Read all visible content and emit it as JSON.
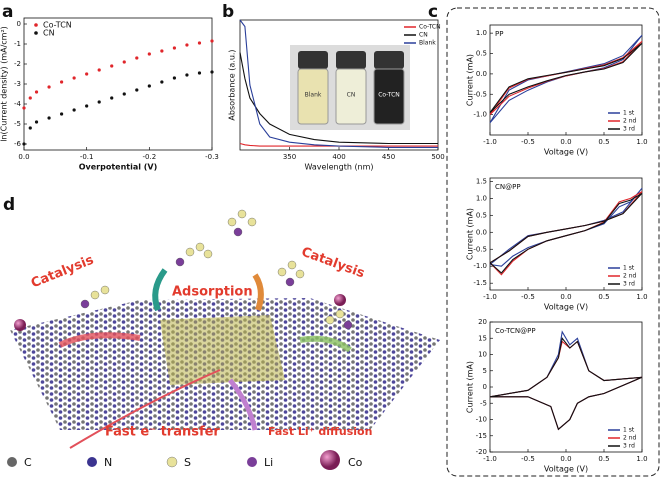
{
  "chart_data": [
    {
      "type": "scatter",
      "panel": "a",
      "x_label": "Overpotential (V)",
      "y_label": "ln(Current density) (mA/cm²)",
      "xlim": [
        0,
        -0.3
      ],
      "ylim": [
        -6.3,
        0.3
      ],
      "xticks": [
        {
          "value": 0,
          "label": "0.0"
        },
        -0.1,
        -0.2,
        -0.3
      ],
      "yticks": [
        0,
        -1,
        -2,
        -3,
        -4,
        -5,
        -6
      ],
      "legend": "upper left",
      "x": [
        0,
        -0.01,
        -0.02,
        -0.04,
        -0.06,
        -0.08,
        -0.1,
        -0.12,
        -0.14,
        -0.16,
        -0.18,
        -0.2,
        -0.22,
        -0.24,
        -0.26,
        -0.28,
        -0.3
      ],
      "series": [
        {
          "name": "Co-TCN",
          "color": "#e0262b",
          "values": [
            -4.2,
            -3.7,
            -3.4,
            -3.15,
            -2.9,
            -2.7,
            -2.5,
            -2.3,
            -2.1,
            -1.9,
            -1.7,
            -1.5,
            -1.35,
            -1.2,
            -1.05,
            -0.95,
            -0.85
          ]
        },
        {
          "name": "CN",
          "color": "#111111",
          "values": [
            -6,
            -5.2,
            -4.9,
            -4.7,
            -4.5,
            -4.3,
            -4.1,
            -3.9,
            -3.7,
            -3.5,
            -3.3,
            -3.1,
            -2.9,
            -2.7,
            -2.55,
            -2.45,
            -2.4
          ]
        }
      ]
    },
    {
      "type": "line",
      "panel": "b",
      "x_label": "Wavelength (nm)",
      "y_label": "Absorbance (a.u.)",
      "xlim": [
        300,
        500
      ],
      "ylim": [
        0,
        1
      ],
      "xticks": [
        350,
        400,
        450,
        500
      ],
      "legend": "upper right",
      "inset_labels": [
        "Blank",
        "CN",
        "Co-TCN"
      ],
      "x": [
        300,
        305,
        310,
        320,
        330,
        350,
        375,
        400,
        450,
        500
      ],
      "series": [
        {
          "name": "Co-TCN",
          "color": "#e0262b",
          "values": [
            0.05,
            0.04,
            0.035,
            0.03,
            0.03,
            0.03,
            0.03,
            0.03,
            0.03,
            0.03
          ]
        },
        {
          "name": "CN",
          "color": "#111111",
          "values": [
            0.75,
            0.55,
            0.4,
            0.28,
            0.2,
            0.12,
            0.08,
            0.06,
            0.05,
            0.05
          ]
        },
        {
          "name": "Blank",
          "color": "#2a3f9a",
          "values": [
            1.0,
            0.95,
            0.5,
            0.2,
            0.1,
            0.06,
            0.04,
            0.03,
            0.02,
            0.02
          ]
        }
      ]
    },
    {
      "type": "line",
      "panel": "c",
      "title": "PP",
      "x_label": "Voltage (V)",
      "y_label": "Current (mA)",
      "xlim": [
        -1,
        1
      ],
      "ylim": [
        -1.5,
        1.2
      ],
      "legend": "lower right",
      "xticks": [
        {
          "value": -1,
          "label": "-1.0"
        },
        -0.5,
        {
          "value": 0,
          "label": "0.0"
        },
        0.5,
        {
          "value": 1,
          "label": "1.0"
        }
      ],
      "yticks": [
        {
          "value": -1,
          "label": "-1.0"
        },
        -0.5,
        {
          "value": 0,
          "label": "0.0"
        },
        0.5,
        {
          "value": 1,
          "label": "1.0"
        }
      ],
      "x": [
        -1,
        -0.75,
        -0.5,
        -0.25,
        0,
        0.25,
        0.5,
        0.75,
        1,
        0.75,
        0.5,
        0.25,
        0,
        -0.25,
        -0.5,
        -0.75,
        -1
      ],
      "series": [
        {
          "name": "1 st",
          "color": "#2a3f9a",
          "values": [
            -1.2,
            -0.65,
            -0.4,
            -0.2,
            -0.05,
            0.05,
            0.15,
            0.35,
            0.95,
            0.45,
            0.25,
            0.15,
            0.05,
            -0.05,
            -0.15,
            -0.4,
            -1.2
          ]
        },
        {
          "name": "2 nd",
          "color": "#e0262b",
          "values": [
            -1.0,
            -0.55,
            -0.35,
            -0.18,
            -0.05,
            0.05,
            0.13,
            0.3,
            0.8,
            0.4,
            0.22,
            0.13,
            0.04,
            -0.05,
            -0.13,
            -0.35,
            -1.0
          ]
        },
        {
          "name": "3 rd",
          "color": "#111111",
          "values": [
            -0.95,
            -0.5,
            -0.32,
            -0.17,
            -0.04,
            0.05,
            0.12,
            0.28,
            0.75,
            0.38,
            0.2,
            0.12,
            0.04,
            -0.04,
            -0.12,
            -0.32,
            -0.95
          ]
        }
      ]
    },
    {
      "type": "line",
      "title": "CN@PP",
      "x_label": "Voltage (V)",
      "y_label": "Current (mA)",
      "xlim": [
        -1,
        1
      ],
      "ylim": [
        -1.7,
        1.6
      ],
      "legend": "lower right",
      "xticks": [
        {
          "value": -1,
          "label": "-1.0"
        },
        -0.5,
        {
          "value": 0,
          "label": "0.0"
        },
        0.5,
        {
          "value": 1,
          "label": "1.0"
        }
      ],
      "yticks": [
        -1.5,
        {
          "value": -1,
          "label": "-1.0"
        },
        -0.5,
        {
          "value": 0,
          "label": "0.0"
        },
        0.5,
        {
          "value": 1,
          "label": "1.0"
        },
        1.5
      ],
      "x": [
        -1,
        -0.85,
        -0.7,
        -0.5,
        -0.25,
        0,
        0.25,
        0.5,
        0.7,
        0.85,
        1,
        0.75,
        0.5,
        0.25,
        0,
        -0.25,
        -0.5,
        -0.75,
        -1
      ],
      "series": [
        {
          "name": "1 st",
          "color": "#2a3f9a",
          "values": [
            -0.95,
            -1.0,
            -0.7,
            -0.45,
            -0.25,
            -0.1,
            0.05,
            0.25,
            0.75,
            0.9,
            1.3,
            0.6,
            0.35,
            0.2,
            0.1,
            0.0,
            -0.1,
            -0.5,
            -0.95
          ]
        },
        {
          "name": "2 nd",
          "color": "#e0262b",
          "values": [
            -0.9,
            -1.25,
            -0.85,
            -0.5,
            -0.25,
            -0.1,
            0.05,
            0.3,
            0.9,
            1.0,
            1.2,
            0.55,
            0.33,
            0.2,
            0.1,
            0.0,
            -0.12,
            -0.55,
            -0.9
          ]
        },
        {
          "name": "3 rd",
          "color": "#111111",
          "values": [
            -0.9,
            -1.2,
            -0.8,
            -0.5,
            -0.25,
            -0.1,
            0.05,
            0.28,
            0.85,
            0.95,
            1.15,
            0.55,
            0.33,
            0.2,
            0.1,
            0.0,
            -0.12,
            -0.55,
            -0.9
          ]
        }
      ]
    },
    {
      "type": "line",
      "title": "Co-TCN@PP",
      "x_label": "Voltage (V)",
      "y_label": "Current (mA)",
      "xlim": [
        -1,
        1
      ],
      "ylim": [
        -20,
        20
      ],
      "legend": "lower right",
      "xticks": [
        {
          "value": -1,
          "label": "-1.0"
        },
        -0.5,
        {
          "value": 0,
          "label": "0.0"
        },
        0.5,
        {
          "value": 1,
          "label": "1.0"
        }
      ],
      "yticks": [
        -20,
        -15,
        -10,
        -5,
        0,
        5,
        10,
        15,
        20
      ],
      "x": [
        -1,
        -0.5,
        -0.25,
        -0.1,
        -0.05,
        0.05,
        0.15,
        0.3,
        0.5,
        1,
        0.5,
        0.3,
        0.15,
        0.05,
        -0.1,
        -0.2,
        -0.5,
        -1
      ],
      "series": [
        {
          "name": "1 st",
          "color": "#2a3f9a",
          "values": [
            -3,
            -1,
            3,
            10,
            17,
            13,
            15,
            5,
            2,
            3,
            -2,
            -3,
            -5,
            -10,
            -13,
            -6,
            -3,
            -3
          ]
        },
        {
          "name": "2 nd",
          "color": "#e0262b",
          "values": [
            -3,
            -1,
            3,
            9,
            14,
            12,
            14,
            5,
            2,
            3,
            -2,
            -3,
            -5,
            -10,
            -13,
            -6,
            -3,
            -3
          ]
        },
        {
          "name": "3 rd",
          "color": "#111111",
          "values": [
            -3,
            -1,
            3,
            9,
            15,
            12,
            14,
            5,
            2,
            3,
            -2,
            -3,
            -5,
            -10,
            -13,
            -6,
            -3,
            -3
          ]
        }
      ]
    }
  ],
  "panel_d": {
    "label": "d",
    "catalysis": [
      "Catalysis",
      "Catalysis"
    ],
    "adsorption": "Adsorption",
    "electron": "Fast e⁻ transfer",
    "lithium": "Fast Li⁺ diffusion",
    "legend": [
      "C",
      "N",
      "S",
      "Li",
      "Co"
    ]
  }
}
